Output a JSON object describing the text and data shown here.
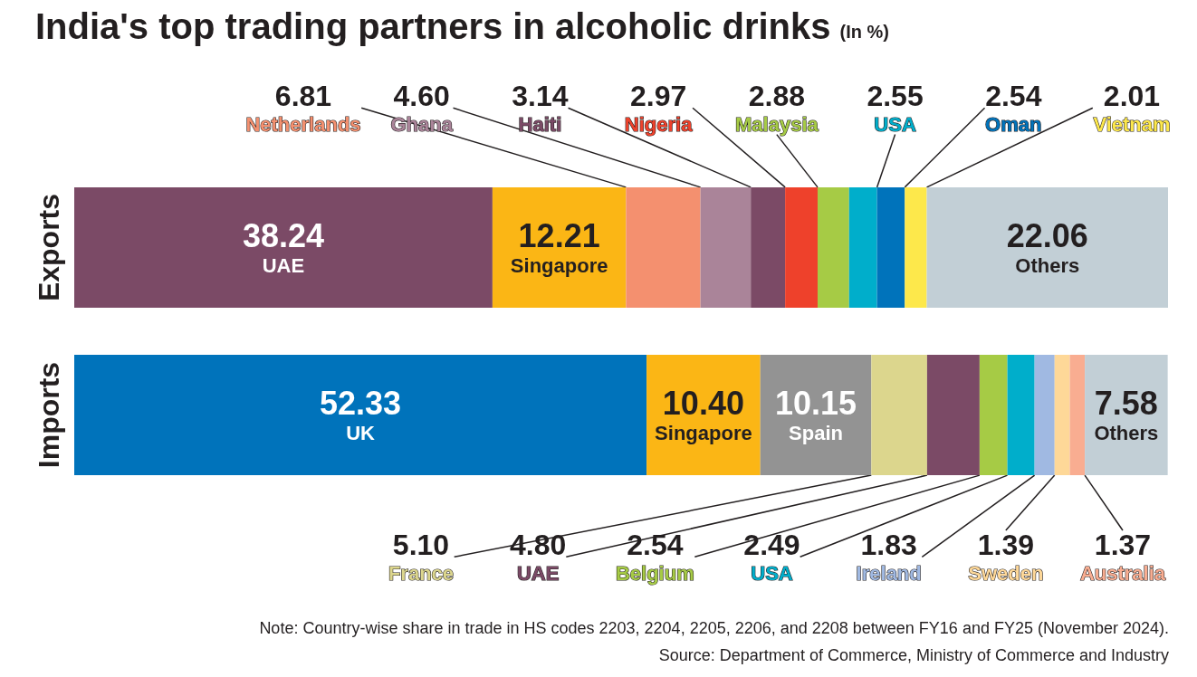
{
  "chart_data": {
    "type": "bar",
    "title": "India's top trading partners in alcoholic drinks",
    "subtitle": "(In %)",
    "orientation": "horizontal",
    "stacked": true,
    "legend": false,
    "categories": [
      "Exports",
      "Imports"
    ],
    "series": [
      {
        "name": "UAE",
        "color": "#7b4a66",
        "values": [
          38.24,
          null
        ],
        "value_labels": [
          "38.24",
          null
        ]
      },
      {
        "name": "Singapore",
        "color": "#fbb615",
        "values": [
          12.21,
          null
        ],
        "value_labels": [
          "12.21",
          null
        ]
      },
      {
        "name": "Netherlands",
        "color": "#f4906f",
        "values": [
          6.81,
          null
        ],
        "value_labels": [
          "6.81",
          null
        ]
      },
      {
        "name": "Ghana",
        "color": "#aa8499",
        "values": [
          4.6,
          null
        ],
        "value_labels": [
          "4.60",
          null
        ]
      },
      {
        "name": "Haiti",
        "color": "#7b4a66",
        "values": [
          3.14,
          null
        ],
        "value_labels": [
          "3.14",
          null
        ]
      },
      {
        "name": "Nigeria",
        "color": "#ee412b",
        "values": [
          2.97,
          null
        ],
        "value_labels": [
          "2.97",
          null
        ]
      },
      {
        "name": "Malaysia",
        "color": "#a6cb45",
        "values": [
          2.88,
          null
        ],
        "value_labels": [
          "2.88",
          null
        ]
      },
      {
        "name": "USA",
        "color": "#00aecb",
        "values": [
          2.55,
          null
        ],
        "value_labels": [
          "2.55",
          null
        ]
      },
      {
        "name": "Oman",
        "color": "#0073bb",
        "values": [
          2.54,
          null
        ],
        "value_labels": [
          "2.54",
          null
        ]
      },
      {
        "name": "Vietnam",
        "color": "#fde84b",
        "values": [
          2.01,
          null
        ],
        "value_labels": [
          "2.01",
          null
        ]
      },
      {
        "name": "Others",
        "color": "#c2cfd6",
        "values": [
          22.06,
          null
        ],
        "value_labels": [
          "22.06",
          null
        ]
      },
      {
        "name": "UK",
        "color": "#0073bb",
        "values": [
          null,
          52.33
        ],
        "value_labels": [
          null,
          "52.33"
        ]
      },
      {
        "name": "Singapore",
        "color": "#fbb615",
        "values": [
          null,
          10.4
        ],
        "value_labels": [
          null,
          "10.40"
        ]
      },
      {
        "name": "Spain",
        "color": "#939393",
        "values": [
          null,
          10.15
        ],
        "value_labels": [
          null,
          "10.15"
        ]
      },
      {
        "name": "France",
        "color": "#dcd68d",
        "values": [
          null,
          5.1
        ],
        "value_labels": [
          null,
          "5.10"
        ]
      },
      {
        "name": "UAE",
        "color": "#7b4a66",
        "values": [
          null,
          4.8
        ],
        "value_labels": [
          null,
          "4.80"
        ]
      },
      {
        "name": "Belgium",
        "color": "#a6cb45",
        "values": [
          null,
          2.54
        ],
        "value_labels": [
          null,
          "2.54"
        ]
      },
      {
        "name": "USA",
        "color": "#00aecb",
        "values": [
          null,
          2.49
        ],
        "value_labels": [
          null,
          "2.49"
        ]
      },
      {
        "name": "Ireland",
        "color": "#a0b9e2",
        "values": [
          null,
          1.83
        ],
        "value_labels": [
          null,
          "1.83"
        ]
      },
      {
        "name": "Sweden",
        "color": "#fed898",
        "values": [
          null,
          1.39
        ],
        "value_labels": [
          null,
          "1.39"
        ]
      },
      {
        "name": "Australia",
        "color": "#f9ad91",
        "values": [
          null,
          1.37
        ],
        "value_labels": [
          null,
          "1.37"
        ]
      },
      {
        "name": "Others",
        "color": "#c2cfd6",
        "values": [
          null,
          7.58
        ],
        "value_labels": [
          null,
          "7.58"
        ]
      }
    ],
    "annotations": [
      "Note: Country-wise share in trade in HS codes 2203, 2204, 2205, 2206, and 2208 between FY16 and FY25 (November 2024).",
      "Source: Department of Commerce, Ministry of Commerce and Industry"
    ]
  }
}
